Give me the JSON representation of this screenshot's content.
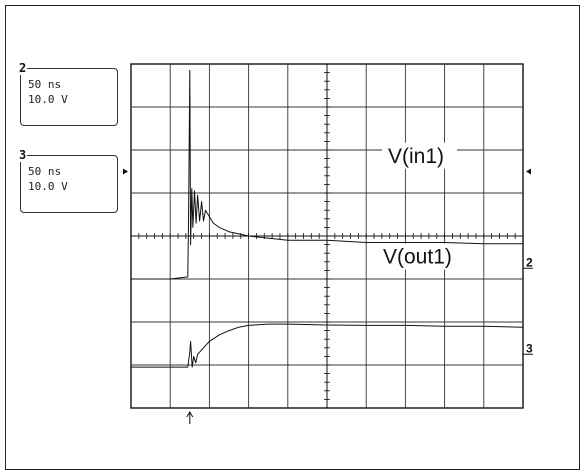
{
  "channels": [
    {
      "number": "2",
      "timebase": "50 ns",
      "scale": "10.0 V"
    },
    {
      "number": "3",
      "timebase": "50 ns",
      "scale": "10.0 V"
    }
  ],
  "chart_data": {
    "type": "line",
    "title": "",
    "xlabel": "",
    "ylabel": "",
    "x_divisions": 10,
    "y_divisions": 8,
    "xlim": [
      0,
      10
    ],
    "ylim": [
      -4,
      4
    ],
    "grid": true,
    "trigger_marker_x_div": 1.5,
    "series": [
      {
        "name": "V(in1)",
        "marker_label": "2",
        "marker_level_div": -0.75,
        "x": [
          0,
          1.0,
          1.45,
          1.47,
          1.5,
          1.52,
          1.55,
          1.58,
          1.62,
          1.66,
          1.7,
          1.75,
          1.8,
          1.85,
          1.9,
          2.0,
          2.1,
          2.25,
          2.5,
          3.0,
          4.0,
          5.0,
          6.0,
          7.0,
          8.0,
          9.0,
          10.0
        ],
        "y": [
          -1.0,
          -1.0,
          -0.95,
          0.5,
          3.85,
          -0.2,
          1.1,
          0.2,
          1.05,
          0.3,
          0.95,
          0.35,
          0.8,
          0.35,
          0.6,
          0.45,
          0.3,
          0.2,
          0.1,
          0.0,
          -0.1,
          -0.1,
          -0.15,
          -0.15,
          -0.15,
          -0.18,
          -0.18
        ]
      },
      {
        "name": "V(out1)",
        "marker_label": "3",
        "marker_level_div": -2.75,
        "x": [
          0,
          1.0,
          1.45,
          1.5,
          1.52,
          1.56,
          1.6,
          1.65,
          1.7,
          1.8,
          1.9,
          2.0,
          2.25,
          2.5,
          2.75,
          3.0,
          3.5,
          4.0,
          5.0,
          6.0,
          7.0,
          8.0,
          9.0,
          10.0
        ],
        "y": [
          -3.05,
          -3.05,
          -3.05,
          -2.7,
          -2.45,
          -3.05,
          -2.8,
          -2.95,
          -2.75,
          -2.65,
          -2.55,
          -2.45,
          -2.3,
          -2.2,
          -2.12,
          -2.08,
          -2.05,
          -2.05,
          -2.07,
          -2.08,
          -2.08,
          -2.1,
          -2.1,
          -2.12
        ]
      }
    ]
  }
}
